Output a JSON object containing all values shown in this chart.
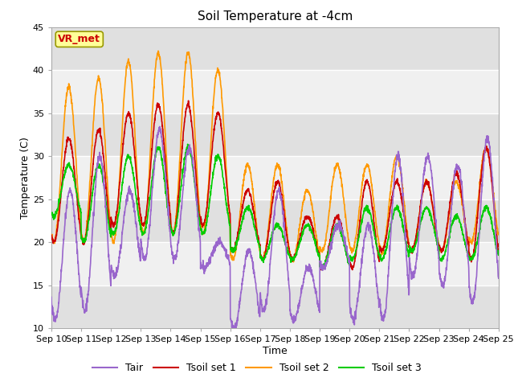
{
  "title": "Soil Temperature at -4cm",
  "xlabel": "Time",
  "ylabel": "Temperature (C)",
  "ylim": [
    10,
    45
  ],
  "n_days": 15,
  "x_tick_labels": [
    "Sep 10",
    "Sep 11",
    "Sep 12",
    "Sep 13",
    "Sep 14",
    "Sep 15",
    "Sep 16",
    "Sep 17",
    "Sep 18",
    "Sep 19",
    "Sep 20",
    "Sep 21",
    "Sep 22",
    "Sep 23",
    "Sep 24",
    "Sep 25"
  ],
  "legend_labels": [
    "Tair",
    "Tsoil set 1",
    "Tsoil set 2",
    "Tsoil set 3"
  ],
  "legend_colors": [
    "#9966cc",
    "#cc0000",
    "#ff9900",
    "#00cc00"
  ],
  "background_color": "#ffffff",
  "plot_bg_light": "#f0f0f0",
  "plot_bg_dark": "#e0e0e0",
  "annotation_text": "VR_met",
  "annotation_color": "#cc0000",
  "annotation_bg": "#ffff99",
  "annotation_border": "#999900",
  "grid_color": "#ffffff",
  "title_fontsize": 11,
  "axis_fontsize": 9,
  "tick_fontsize": 8,
  "legend_fontsize": 9,
  "line_width": 1.2,
  "day_peaks_Tair": [
    26,
    30,
    26,
    33,
    31,
    20,
    19,
    26,
    17,
    22,
    22,
    30,
    30,
    29,
    32
  ],
  "day_troughs_Tair": [
    11,
    12,
    16,
    18,
    18,
    17,
    10,
    12,
    11,
    17,
    11,
    11,
    16,
    15,
    13
  ],
  "day_peaks_Tsoil1": [
    32,
    33,
    35,
    36,
    36,
    35,
    26,
    27,
    23,
    23,
    27,
    27,
    27,
    28,
    31
  ],
  "day_troughs_Tsoil1": [
    20,
    20,
    22,
    22,
    21,
    22,
    19,
    18,
    18,
    17,
    17,
    19,
    19,
    19,
    18
  ],
  "day_peaks_Tsoil2": [
    38,
    39,
    41,
    42,
    42,
    40,
    29,
    29,
    26,
    29,
    29,
    30,
    27,
    27,
    31
  ],
  "day_troughs_Tsoil2": [
    20,
    20,
    20,
    21,
    21,
    21,
    18,
    18,
    18,
    19,
    19,
    19,
    19,
    19,
    20
  ],
  "day_peaks_Tsoil3": [
    29,
    29,
    30,
    31,
    31,
    30,
    24,
    22,
    22,
    22,
    24,
    24,
    24,
    23,
    24
  ],
  "day_troughs_Tsoil3": [
    23,
    20,
    21,
    21,
    21,
    21,
    19,
    18,
    18,
    17,
    18,
    18,
    19,
    18,
    18
  ]
}
